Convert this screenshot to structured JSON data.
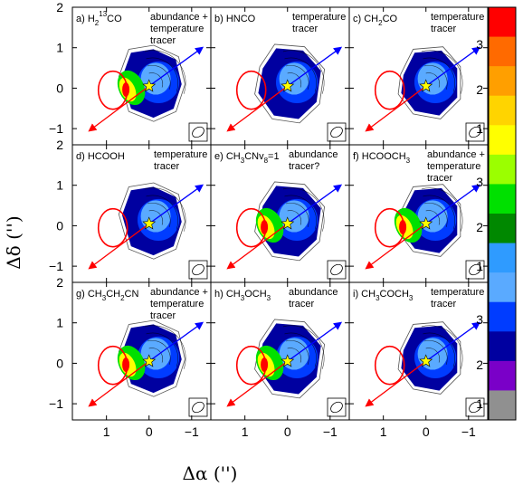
{
  "chart_data": {
    "type": "heatmap",
    "xlabel": "Δα  ('')",
    "ylabel": "Δδ  ('')",
    "xlim": [
      1.8,
      -1.45
    ],
    "ylim": [
      -1.4,
      2.0
    ],
    "xticks": [
      "1",
      "0",
      "−1"
    ],
    "yticks_top": [
      "2",
      "1",
      "0",
      "−1"
    ],
    "yticks_lower": [
      "2",
      "1",
      "0",
      "−1"
    ],
    "colorbar": {
      "ticks": [
        "3",
        "2",
        "1"
      ],
      "colors": [
        "#ff0000",
        "#ff6a00",
        "#ff9f00",
        "#ffd400",
        "#ffff00",
        "#9bff00",
        "#00e000",
        "#008800",
        "#2f9bff",
        "#5aaaff",
        "#003cff",
        "#0000a0",
        "#7a00c8",
        "#909090"
      ]
    },
    "star_position": [
      0.0,
      0.05
    ],
    "outflow_arrows": {
      "blue": {
        "color": "#0000ff",
        "from": [
          0.0,
          0.05
        ],
        "to": [
          -1.25,
          1.0
        ]
      },
      "red": {
        "color": "#ff0000",
        "from": [
          0.0,
          0.05
        ],
        "to": [
          1.4,
          -1.05
        ]
      }
    },
    "panels": [
      {
        "label": "a)",
        "title": "H2¹³CO",
        "t": {
          "base": "H",
          "sub": "2",
          "sup": "13",
          "rest": "CO"
        },
        "note": [
          "abundance +",
          "temperature",
          "tracer"
        ]
      },
      {
        "label": "b)",
        "title": "HNCO",
        "t": {
          "base": "HNCO"
        },
        "note": [
          "temperature",
          "tracer"
        ]
      },
      {
        "label": "c)",
        "title": "CH2CO",
        "t": {
          "base": "CH",
          "sub": "2",
          "rest": "CO"
        },
        "note": [
          "temperature",
          "tracer"
        ]
      },
      {
        "label": "d)",
        "title": "HCOOH",
        "t": {
          "base": "HCOOH"
        },
        "note": [
          "temperature",
          "tracer"
        ]
      },
      {
        "label": "e)",
        "title": "CH3CNv8=1",
        "t": {
          "base": "CH",
          "sub": "3",
          "rest": "CNv",
          "sub2": "8",
          "rest2": "=1"
        },
        "note": [
          "abundance",
          "tracer?"
        ]
      },
      {
        "label": "f)",
        "title": "HCOOCH3",
        "t": {
          "base": "HCOOCH",
          "sub": "3"
        },
        "note": [
          "abundance +",
          "temperature",
          "tracer"
        ]
      },
      {
        "label": "g)",
        "title": "CH3CH2CN",
        "t": {
          "base": "CH",
          "sub": "3",
          "rest": "CH",
          "sub2": "2",
          "rest2": "CN"
        },
        "note": [
          "abundance +",
          "temperature",
          "tracer"
        ]
      },
      {
        "label": "h)",
        "title": "CH3OCH3",
        "t": {
          "base": "CH",
          "sub": "3",
          "rest": "OCH",
          "sub2": "3"
        },
        "note": [
          "abundance",
          "tracer"
        ]
      },
      {
        "label": "i)",
        "title": "CH3COCH3",
        "t": {
          "base": "CH",
          "sub": "3",
          "rest": "COCH",
          "sub2": "3"
        },
        "note": [
          "temperature",
          "tracer"
        ]
      }
    ]
  }
}
